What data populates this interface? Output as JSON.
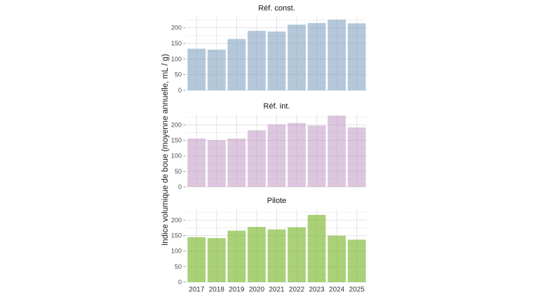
{
  "chart_data": {
    "type": "bar",
    "title": "",
    "xlabel": "",
    "ylabel": "Indice volumique de boue (moyenne annuelle, mL / g)",
    "categories": [
      "2017",
      "2018",
      "2019",
      "2020",
      "2021",
      "2022",
      "2023",
      "2024",
      "2025"
    ],
    "y_ticks": [
      0,
      50,
      100,
      150,
      200
    ],
    "y_minor_ticks": [
      25,
      75,
      125,
      175,
      225
    ],
    "ylim": [
      0,
      235
    ],
    "grid": "on",
    "legend_position": "none",
    "facets_share_x_axis": true,
    "panels": [
      {
        "title": "Réf. const.",
        "series_name": "Réf. const.",
        "values": [
          133,
          130,
          164,
          190,
          188,
          210,
          215,
          226,
          214
        ],
        "fill": "rgba(119,155,188,0.55)",
        "fill_solid_equivalent": "#b4c8da"
      },
      {
        "title": "Réf. int.",
        "series_name": "Réf. int.",
        "values": [
          156,
          151,
          156,
          183,
          202,
          206,
          198,
          230,
          192
        ],
        "fill": "rgba(185,143,189,0.5)",
        "fill_solid_equivalent": "#dcc7de"
      },
      {
        "title": "Pilote",
        "series_name": "Pilote",
        "values": [
          145,
          142,
          166,
          178,
          170,
          177,
          217,
          150,
          137
        ],
        "fill": "rgba(118,181,37,0.62)",
        "fill_solid_equivalent": "#aad178"
      }
    ],
    "colors": {
      "grid_major": "#e2e2e2",
      "grid_minor": "#f0f0f0",
      "tick_mark": "#999999",
      "axis_text": "#4d4d4d",
      "x_axis_text": "#333333",
      "background": "#ffffff"
    }
  }
}
